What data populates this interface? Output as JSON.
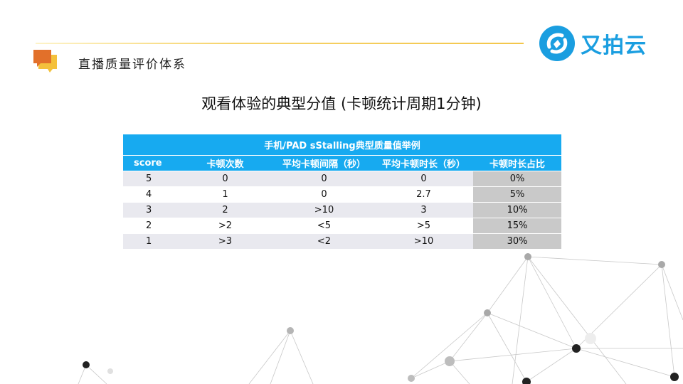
{
  "header": {
    "section_title": "直播质量评价体系",
    "logo_text": "又拍云"
  },
  "slide": {
    "title": "观看体验的典型分值 (卡顿统计周期1分钟)"
  },
  "table": {
    "caption": "手机/PAD sStalling典型质量值举例",
    "columns": [
      "score",
      "卡顿次数",
      "平均卡顿间隔（秒）",
      "平均卡顿时长（秒）",
      "卡顿时长占比"
    ],
    "rows": [
      [
        "5",
        "0",
        "0",
        "0",
        "0%"
      ],
      [
        "4",
        "1",
        "0",
        "2.7",
        "5%"
      ],
      [
        "3",
        "2",
        ">10",
        "3",
        "10%"
      ],
      [
        "2",
        ">2",
        "<5",
        ">5",
        "15%"
      ],
      [
        "1",
        ">3",
        "<2",
        ">10",
        "30%"
      ]
    ]
  },
  "colors": {
    "accent_blue": "#17aaf0",
    "logo_blue": "#1a9ee0",
    "icon_orange": "#e2702a",
    "icon_yellow": "#f4c13c",
    "line_gold": "#f3c64a"
  }
}
